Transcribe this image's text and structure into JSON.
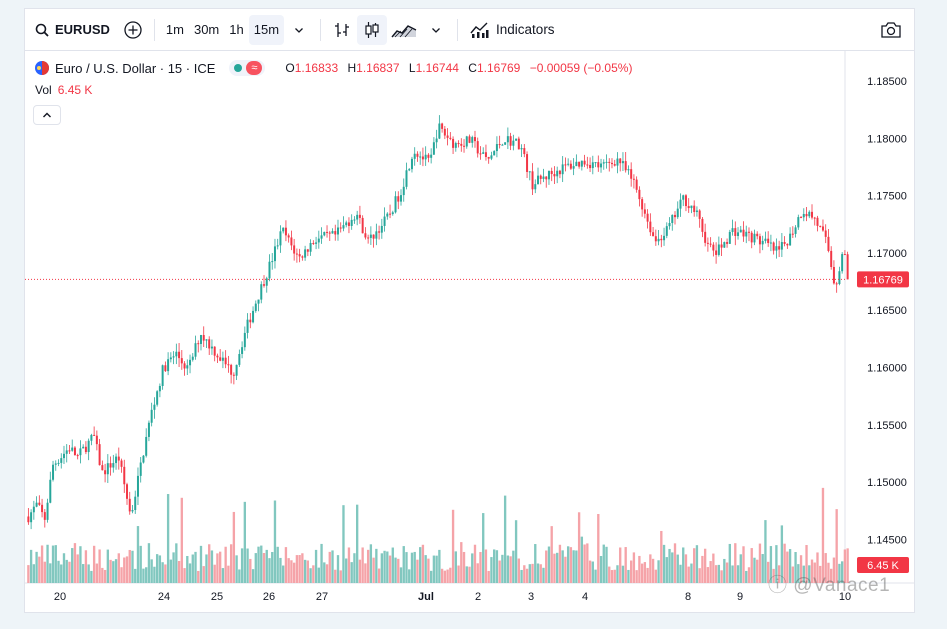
{
  "toolbar": {
    "symbol": "EURUSD",
    "intervals": [
      "1m",
      "30m",
      "1h",
      "15m"
    ],
    "active_interval": "15m",
    "indicators_label": "Indicators"
  },
  "legend": {
    "title": "Euro / U.S. Dollar · 15 · ICE",
    "open_label": "O",
    "open": "1.16833",
    "high_label": "H",
    "high": "1.16837",
    "low_label": "L",
    "low": "1.16744",
    "close_label": "C",
    "close": "1.16769",
    "change": "−0.00059 (−0.05%)",
    "vol_label": "Vol",
    "vol_value": "6.45 K"
  },
  "watermark": "ⓘ @Vanace1",
  "colors": {
    "up": "#26a69a",
    "down": "#f23645",
    "up_vol": "#81c7bf",
    "down_vol": "#f5a3a8"
  },
  "chart_data": {
    "type": "candlestick",
    "y_ticks": [
      "1.18500",
      "1.18000",
      "1.17500",
      "1.17000",
      "1.16500",
      "1.16000",
      "1.15500",
      "1.15000",
      "1.14500"
    ],
    "ylim": [
      1.143,
      1.187
    ],
    "x_labels": [
      "20",
      "24",
      "25",
      "26",
      "27",
      "Jul",
      "2",
      "3",
      "4",
      "8",
      "9",
      "10"
    ],
    "last_price": "1.16769",
    "last_volume": "6.45 K",
    "close_path": [
      [
        0,
        1.147
      ],
      [
        0.01,
        1.148
      ],
      [
        0.02,
        1.1468
      ],
      [
        0.03,
        1.1515
      ],
      [
        0.05,
        1.153
      ],
      [
        0.06,
        1.1522
      ],
      [
        0.08,
        1.154
      ],
      [
        0.09,
        1.1508
      ],
      [
        0.11,
        1.1522
      ],
      [
        0.125,
        1.147
      ],
      [
        0.14,
        1.1525
      ],
      [
        0.15,
        1.156
      ],
      [
        0.165,
        1.16
      ],
      [
        0.18,
        1.1612
      ],
      [
        0.195,
        1.1598
      ],
      [
        0.21,
        1.163
      ],
      [
        0.23,
        1.1612
      ],
      [
        0.25,
        1.1595
      ],
      [
        0.265,
        1.1632
      ],
      [
        0.28,
        1.1662
      ],
      [
        0.295,
        1.169
      ],
      [
        0.31,
        1.172
      ],
      [
        0.33,
        1.1695
      ],
      [
        0.35,
        1.1712
      ],
      [
        0.375,
        1.1715
      ],
      [
        0.4,
        1.1735
      ],
      [
        0.415,
        1.171
      ],
      [
        0.44,
        1.1732
      ],
      [
        0.455,
        1.1755
      ],
      [
        0.47,
        1.179
      ],
      [
        0.49,
        1.1778
      ],
      [
        0.5,
        1.181
      ],
      [
        0.52,
        1.1795
      ],
      [
        0.54,
        1.1798
      ],
      [
        0.56,
        1.178
      ],
      [
        0.58,
        1.18
      ],
      [
        0.6,
        1.1795
      ],
      [
        0.615,
        1.176
      ],
      [
        0.635,
        1.1768
      ],
      [
        0.655,
        1.1775
      ],
      [
        0.68,
        1.178
      ],
      [
        0.7,
        1.1775
      ],
      [
        0.72,
        1.1782
      ],
      [
        0.74,
        1.176
      ],
      [
        0.765,
        1.171
      ],
      [
        0.78,
        1.172
      ],
      [
        0.8,
        1.1748
      ],
      [
        0.815,
        1.1735
      ],
      [
        0.83,
        1.1705
      ],
      [
        0.84,
        1.17
      ],
      [
        0.86,
        1.172
      ],
      [
        0.88,
        1.1715
      ],
      [
        0.9,
        1.1708
      ],
      [
        0.915,
        1.17
      ],
      [
        0.93,
        1.1715
      ],
      [
        0.945,
        1.1738
      ],
      [
        0.96,
        1.173
      ],
      [
        0.975,
        1.1708
      ],
      [
        0.985,
        1.167
      ],
      [
        0.995,
        1.1705
      ],
      [
        1.0,
        1.1677
      ]
    ]
  }
}
